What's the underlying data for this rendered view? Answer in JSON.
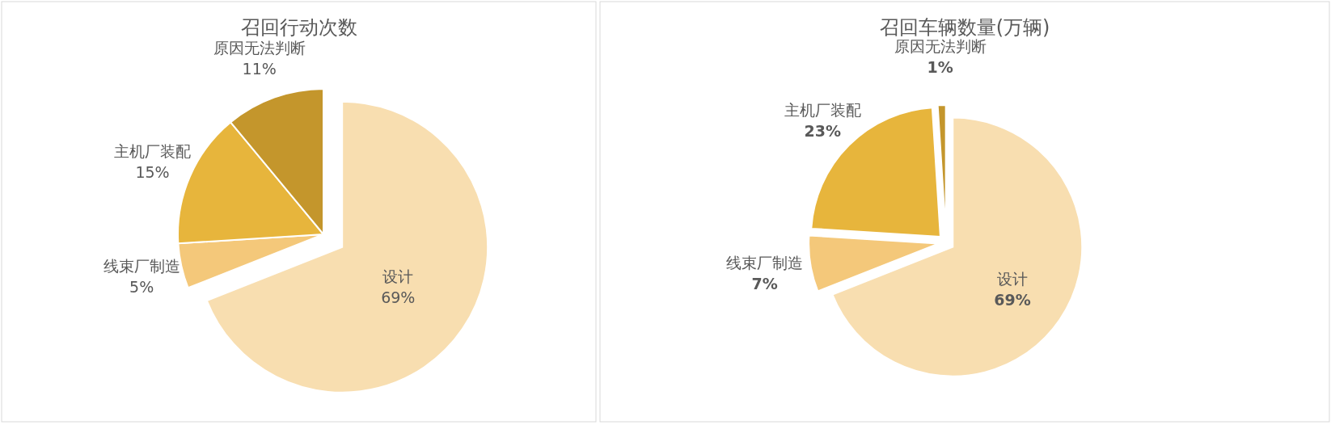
{
  "chart_data": [
    {
      "type": "pie",
      "title": "召回行动次数",
      "categories": [
        "设计",
        "线束厂制造",
        "主机厂装配",
        "原因无法判断"
      ],
      "values": [
        69,
        5,
        15,
        11
      ],
      "value_labels": [
        "69%",
        "5%",
        "15%",
        "11%"
      ],
      "colors": [
        "#f8deb0",
        "#f4c87a",
        "#e7b53c",
        "#c4962c"
      ]
    },
    {
      "type": "pie",
      "title": "召回车辆数量(万辆)",
      "categories": [
        "设计",
        "线束厂制造",
        "主机厂装配",
        "原因无法判断"
      ],
      "values": [
        69,
        7,
        23,
        1
      ],
      "value_labels": [
        "69%",
        "7%",
        "23%",
        "1%"
      ],
      "colors": [
        "#f8deb0",
        "#f4c87a",
        "#e7b53c",
        "#c4962c"
      ]
    }
  ]
}
